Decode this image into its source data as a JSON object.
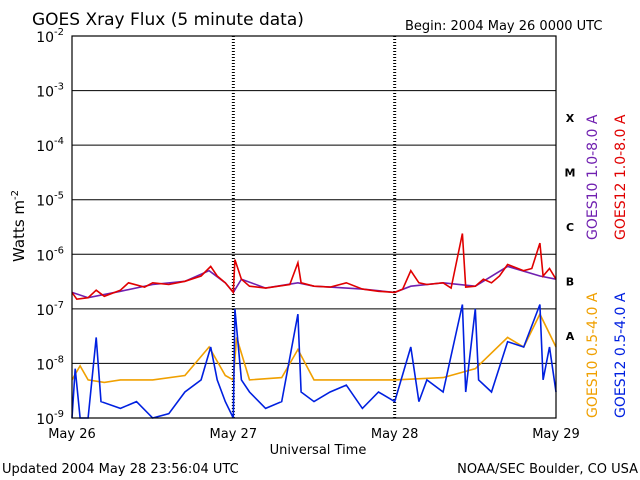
{
  "header": {
    "title": "GOES Xray Flux (5 minute data)",
    "begin": "Begin:  2004 May 26 0000 UTC"
  },
  "footer": {
    "updated": "Updated 2004 May 28 23:56:04 UTC",
    "credit": "NOAA/SEC Boulder, CO USA"
  },
  "chart_data": {
    "type": "line",
    "title": "GOES Xray Flux (5 minute data)",
    "xlabel": "Universal Time",
    "ylabel": "Watts m",
    "ylabel_sup": "-2",
    "y_scale": "log",
    "ylim": [
      1e-09,
      0.01
    ],
    "y_ticks": [
      {
        "base": "10",
        "exp": "-2"
      },
      {
        "base": "10",
        "exp": "-3"
      },
      {
        "base": "10",
        "exp": "-4"
      },
      {
        "base": "10",
        "exp": "-5"
      },
      {
        "base": "10",
        "exp": "-6"
      },
      {
        "base": "10",
        "exp": "-7"
      },
      {
        "base": "10",
        "exp": "-8"
      },
      {
        "base": "10",
        "exp": "-9"
      }
    ],
    "x_ticks": [
      "May 26",
      "May 27",
      "May 28",
      "May 29"
    ],
    "flare_classes": [
      "X",
      "M",
      "C",
      "B",
      "A"
    ],
    "grid": true,
    "series": [
      {
        "name": "GOES10 1.0-8.0 A",
        "color": "#7020b0",
        "points": [
          [
            0,
            2e-07
          ],
          [
            0.1,
            1.6e-07
          ],
          [
            0.3,
            2.1e-07
          ],
          [
            0.5,
            2.8e-07
          ],
          [
            0.7,
            3.2e-07
          ],
          [
            0.85,
            5e-07
          ],
          [
            0.95,
            3e-07
          ],
          [
            1.0,
            2e-07
          ],
          [
            1.05,
            3.5e-07
          ],
          [
            1.2,
            2.4e-07
          ],
          [
            1.4,
            3e-07
          ],
          [
            1.5,
            2.6e-07
          ],
          [
            1.6,
            2.5e-07
          ],
          [
            1.8,
            2.3e-07
          ],
          [
            2.0,
            2e-07
          ],
          [
            2.1,
            2.6e-07
          ],
          [
            2.3,
            3e-07
          ],
          [
            2.5,
            2.6e-07
          ],
          [
            2.7,
            6e-07
          ],
          [
            2.9,
            4e-07
          ],
          [
            3.0,
            3.5e-07
          ]
        ]
      },
      {
        "name": "GOES12 1.0-8.0 A",
        "color": "#e00000",
        "points": [
          [
            0,
            2e-07
          ],
          [
            0.03,
            1.5e-07
          ],
          [
            0.1,
            1.6e-07
          ],
          [
            0.15,
            2.2e-07
          ],
          [
            0.2,
            1.7e-07
          ],
          [
            0.3,
            2.2e-07
          ],
          [
            0.35,
            3e-07
          ],
          [
            0.45,
            2.5e-07
          ],
          [
            0.5,
            3e-07
          ],
          [
            0.6,
            2.8e-07
          ],
          [
            0.7,
            3.2e-07
          ],
          [
            0.8,
            4e-07
          ],
          [
            0.86,
            6e-07
          ],
          [
            0.9,
            4e-07
          ],
          [
            0.95,
            3e-07
          ],
          [
            1.0,
            2e-07
          ],
          [
            1.01,
            8e-07
          ],
          [
            1.05,
            3.5e-07
          ],
          [
            1.1,
            2.6e-07
          ],
          [
            1.2,
            2.4e-07
          ],
          [
            1.35,
            2.8e-07
          ],
          [
            1.4,
            7e-07
          ],
          [
            1.42,
            3e-07
          ],
          [
            1.5,
            2.6e-07
          ],
          [
            1.6,
            2.5e-07
          ],
          [
            1.7,
            3e-07
          ],
          [
            1.8,
            2.3e-07
          ],
          [
            1.9,
            2.1e-07
          ],
          [
            2.0,
            2e-07
          ],
          [
            2.05,
            2.3e-07
          ],
          [
            2.1,
            5e-07
          ],
          [
            2.15,
            3e-07
          ],
          [
            2.2,
            2.8e-07
          ],
          [
            2.3,
            3e-07
          ],
          [
            2.35,
            2.4e-07
          ],
          [
            2.42,
            2.4e-06
          ],
          [
            2.44,
            2.5e-07
          ],
          [
            2.5,
            2.6e-07
          ],
          [
            2.55,
            3.5e-07
          ],
          [
            2.6,
            3e-07
          ],
          [
            2.65,
            4e-07
          ],
          [
            2.7,
            6.5e-07
          ],
          [
            2.8,
            5e-07
          ],
          [
            2.85,
            5.5e-07
          ],
          [
            2.9,
            1.6e-06
          ],
          [
            2.92,
            4e-07
          ],
          [
            2.96,
            5.5e-07
          ],
          [
            3.0,
            3.5e-07
          ]
        ]
      },
      {
        "name": "GOES10 0.5-4.0 A",
        "color": "#f0a000",
        "points": [
          [
            0,
            5e-09
          ],
          [
            0.05,
            9e-09
          ],
          [
            0.1,
            5e-09
          ],
          [
            0.2,
            4.5e-09
          ],
          [
            0.3,
            5e-09
          ],
          [
            0.5,
            5e-09
          ],
          [
            0.7,
            6e-09
          ],
          [
            0.85,
            2e-08
          ],
          [
            0.95,
            6e-09
          ],
          [
            1.0,
            5e-09
          ],
          [
            1.02,
            3e-08
          ],
          [
            1.1,
            5e-09
          ],
          [
            1.3,
            5.5e-09
          ],
          [
            1.4,
            1.8e-08
          ],
          [
            1.5,
            5e-09
          ],
          [
            1.7,
            5e-09
          ],
          [
            2.0,
            5e-09
          ],
          [
            2.3,
            5.5e-09
          ],
          [
            2.5,
            8e-09
          ],
          [
            2.7,
            3e-08
          ],
          [
            2.8,
            2e-08
          ],
          [
            2.9,
            8e-08
          ],
          [
            3.0,
            2e-08
          ]
        ]
      },
      {
        "name": "GOES12 0.5-4.0 A",
        "color": "#0020e0",
        "points": [
          [
            0,
            1e-09
          ],
          [
            0.02,
            8e-09
          ],
          [
            0.05,
            1e-09
          ],
          [
            0.1,
            1e-09
          ],
          [
            0.15,
            3e-08
          ],
          [
            0.18,
            2e-09
          ],
          [
            0.3,
            1.5e-09
          ],
          [
            0.4,
            2e-09
          ],
          [
            0.5,
            1e-09
          ],
          [
            0.6,
            1.2e-09
          ],
          [
            0.7,
            3e-09
          ],
          [
            0.8,
            5e-09
          ],
          [
            0.86,
            2e-08
          ],
          [
            0.9,
            5e-09
          ],
          [
            0.95,
            2e-09
          ],
          [
            1.0,
            1e-09
          ],
          [
            1.01,
            1e-07
          ],
          [
            1.05,
            5e-09
          ],
          [
            1.1,
            3e-09
          ],
          [
            1.2,
            1.5e-09
          ],
          [
            1.3,
            2e-09
          ],
          [
            1.4,
            8e-08
          ],
          [
            1.42,
            3e-09
          ],
          [
            1.5,
            2e-09
          ],
          [
            1.6,
            3e-09
          ],
          [
            1.7,
            4e-09
          ],
          [
            1.8,
            1.5e-09
          ],
          [
            1.9,
            3e-09
          ],
          [
            2.0,
            2e-09
          ],
          [
            2.1,
            2e-08
          ],
          [
            2.15,
            2e-09
          ],
          [
            2.2,
            5e-09
          ],
          [
            2.3,
            3e-09
          ],
          [
            2.42,
            1.2e-07
          ],
          [
            2.44,
            3e-09
          ],
          [
            2.5,
            1e-07
          ],
          [
            2.52,
            5e-09
          ],
          [
            2.6,
            3e-09
          ],
          [
            2.7,
            2.5e-08
          ],
          [
            2.8,
            2e-08
          ],
          [
            2.9,
            1.2e-07
          ],
          [
            2.92,
            5e-09
          ],
          [
            2.96,
            2e-08
          ],
          [
            3.0,
            3e-09
          ]
        ]
      }
    ]
  }
}
